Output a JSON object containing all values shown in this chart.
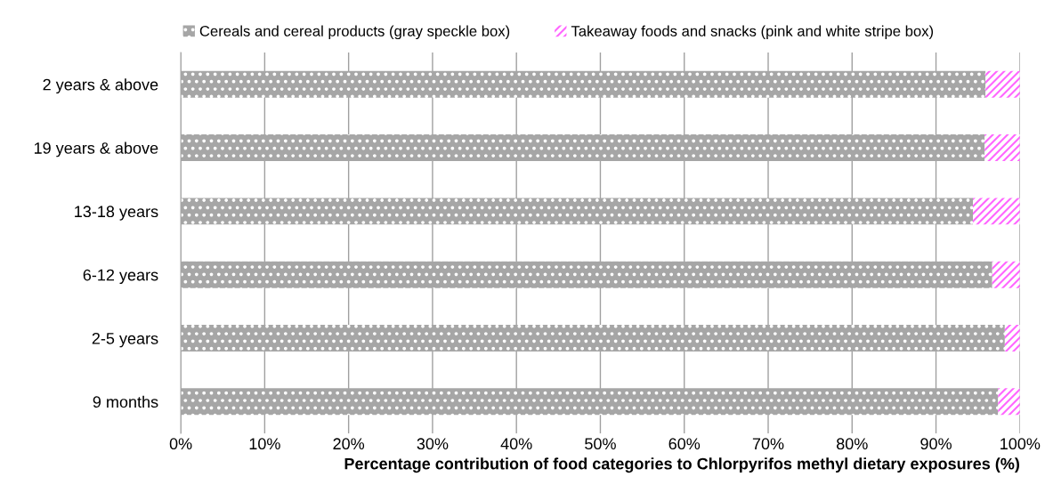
{
  "chart_data": {
    "type": "bar",
    "orientation": "horizontal",
    "stacked": true,
    "xlabel": "Percentage contribution of food categories to Chlorpyrifos methyl dietary exposures (%)",
    "categories": [
      "2 years & above",
      "19 years & above",
      "13-18 years",
      "6-12 years",
      "2-5 years",
      "9 months"
    ],
    "series": [
      {
        "name": "Cereals and cereal products (gray speckle box)",
        "color": "#a6a6a6",
        "values": [
          95.9,
          95.8,
          94.4,
          96.7,
          98.2,
          97.4
        ]
      },
      {
        "name": "Takeaway foods and snacks (pink and white stripe box)",
        "color": "#ff66ff",
        "values": [
          4.1,
          4.2,
          5.6,
          3.3,
          1.8,
          2.6
        ]
      }
    ],
    "xlim": [
      0,
      100
    ],
    "xticks": [
      {
        "value": 0,
        "label": "0%"
      },
      {
        "value": 10,
        "label": "10%"
      },
      {
        "value": 20,
        "label": "20%"
      },
      {
        "value": 30,
        "label": "30%"
      },
      {
        "value": 40,
        "label": "40%"
      },
      {
        "value": 50,
        "label": "50%"
      },
      {
        "value": 60,
        "label": "60%"
      },
      {
        "value": 70,
        "label": "70%"
      },
      {
        "value": 80,
        "label": "80%"
      },
      {
        "value": 90,
        "label": "90%"
      },
      {
        "value": 100,
        "label": "100%"
      }
    ],
    "grid": "x",
    "legend": "top"
  }
}
